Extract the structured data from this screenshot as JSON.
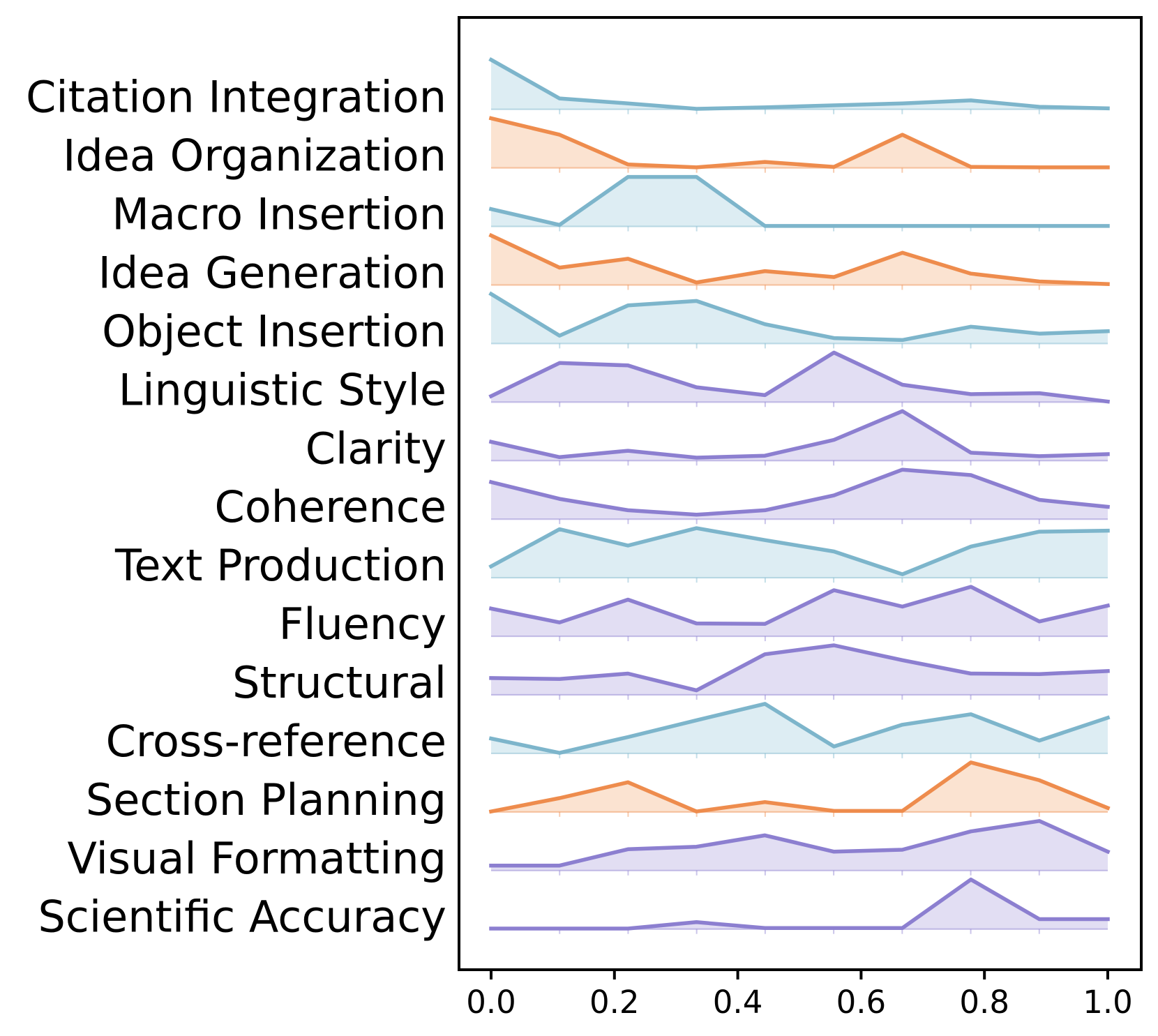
{
  "chart_data": {
    "type": "area",
    "subtype": "ridgeline",
    "title": "",
    "xlabel": "",
    "ylabel": "",
    "x": [
      0.0,
      0.111,
      0.222,
      0.333,
      0.444,
      0.556,
      0.667,
      0.778,
      0.889,
      1.0
    ],
    "xlim": [
      0.0,
      1.0
    ],
    "x_tick_labels": [
      "0.0",
      "0.2",
      "0.4",
      "0.6",
      "0.8",
      "1.0"
    ],
    "x_tick_values": [
      0.0,
      0.2,
      0.4,
      0.6,
      0.8,
      1.0
    ],
    "grid": false,
    "legend": "none",
    "row_order": "top-to-bottom",
    "values_note": "per-row normalized density heights, max 1.0 per row",
    "series": [
      {
        "label": "Citation Integration",
        "palette": "teal",
        "values": [
          1.0,
          0.22,
          0.12,
          0.01,
          0.04,
          0.08,
          0.12,
          0.18,
          0.05,
          0.02
        ]
      },
      {
        "label": "Idea Organization",
        "palette": "orange",
        "values": [
          1.0,
          0.67,
          0.07,
          0.01,
          0.12,
          0.02,
          0.67,
          0.02,
          0.01,
          0.01
        ]
      },
      {
        "label": "Macro Insertion",
        "palette": "teal",
        "values": [
          0.35,
          0.03,
          1.0,
          1.0,
          0.01,
          0.01,
          0.01,
          0.01,
          0.01,
          0.01
        ]
      },
      {
        "label": "Idea Generation",
        "palette": "orange",
        "values": [
          1.0,
          0.35,
          0.53,
          0.05,
          0.28,
          0.16,
          0.65,
          0.23,
          0.07,
          0.02
        ]
      },
      {
        "label": "Object Insertion",
        "palette": "teal",
        "values": [
          1.0,
          0.16,
          0.77,
          0.86,
          0.39,
          0.11,
          0.07,
          0.34,
          0.2,
          0.25
        ]
      },
      {
        "label": "Linguistic Style",
        "palette": "purple",
        "values": [
          0.12,
          0.79,
          0.74,
          0.3,
          0.14,
          1.0,
          0.35,
          0.16,
          0.18,
          0.01
        ]
      },
      {
        "label": "Clarity",
        "palette": "purple",
        "values": [
          0.38,
          0.07,
          0.2,
          0.06,
          0.1,
          0.42,
          1.0,
          0.16,
          0.09,
          0.13
        ]
      },
      {
        "label": "Coherence",
        "palette": "purple",
        "values": [
          0.75,
          0.41,
          0.18,
          0.09,
          0.18,
          0.48,
          1.0,
          0.89,
          0.39,
          0.25
        ]
      },
      {
        "label": "Text Production",
        "palette": "teal",
        "values": [
          0.23,
          0.98,
          0.65,
          1.0,
          0.76,
          0.53,
          0.07,
          0.63,
          0.93,
          0.95
        ]
      },
      {
        "label": "Fluency",
        "palette": "purple",
        "values": [
          0.56,
          0.28,
          0.74,
          0.26,
          0.25,
          0.93,
          0.6,
          1.0,
          0.3,
          0.62
        ]
      },
      {
        "label": "Structural",
        "palette": "purple",
        "values": [
          0.34,
          0.32,
          0.43,
          0.09,
          0.82,
          1.0,
          0.7,
          0.43,
          0.42,
          0.48
        ]
      },
      {
        "label": "Cross-reference",
        "palette": "teal",
        "values": [
          0.3,
          0.01,
          0.33,
          0.67,
          1.0,
          0.14,
          0.58,
          0.79,
          0.26,
          0.72
        ]
      },
      {
        "label": "Section Planning",
        "palette": "orange",
        "values": [
          0.01,
          0.28,
          0.6,
          0.01,
          0.2,
          0.02,
          0.02,
          1.0,
          0.64,
          0.08
        ]
      },
      {
        "label": "Visual Formatting",
        "palette": "purple",
        "values": [
          0.1,
          0.1,
          0.43,
          0.48,
          0.71,
          0.38,
          0.42,
          0.79,
          1.0,
          0.38
        ]
      },
      {
        "label": "Scientific Accuracy",
        "palette": "purple",
        "values": [
          0.01,
          0.01,
          0.01,
          0.14,
          0.02,
          0.02,
          0.02,
          1.0,
          0.2,
          0.2
        ]
      }
    ],
    "palette": {
      "teal": {
        "stroke": "#7db5cb",
        "fill": "#ddedf3"
      },
      "orange": {
        "stroke": "#ee8c4d",
        "fill": "#fbe3d1"
      },
      "purple": {
        "stroke": "#8c7fd0",
        "fill": "#e2def3"
      }
    },
    "frame_color": "#000000"
  }
}
